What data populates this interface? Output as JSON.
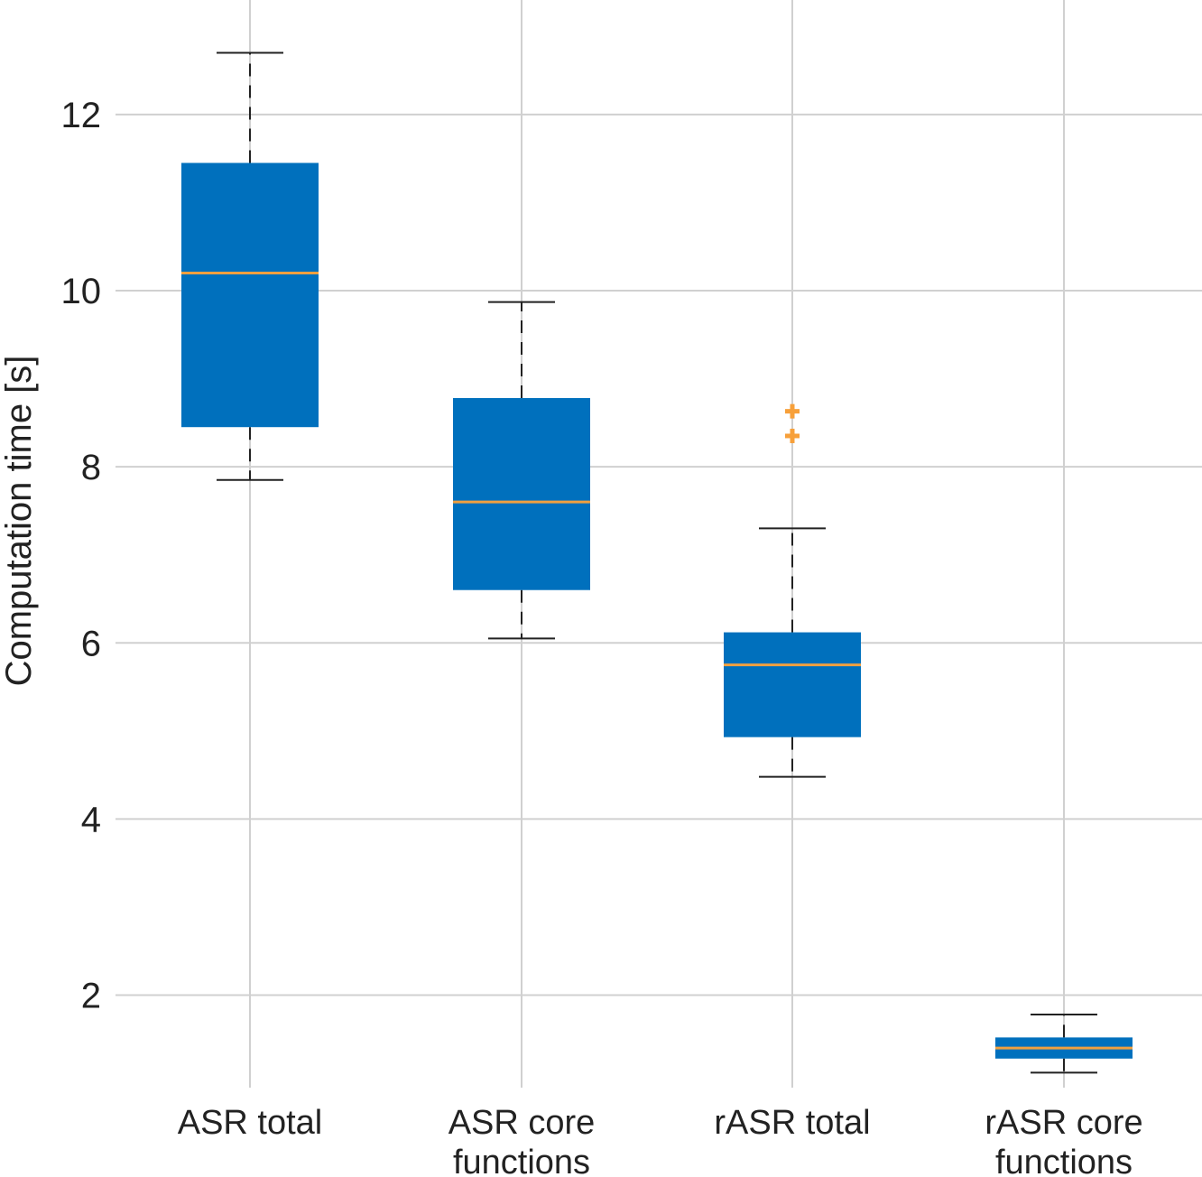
{
  "colors": {
    "box": "#0070bd",
    "median": "#f0a040",
    "outlier": "#f7a03a",
    "grid": "#d0d0d0",
    "whisker": "#222222"
  },
  "chart_data": {
    "type": "box",
    "title": "",
    "xlabel": "",
    "ylabel": "Computation time [s]",
    "ylim": [
      0.95,
      13.3
    ],
    "yticks": [
      2,
      4,
      6,
      8,
      10,
      12
    ],
    "ytick_labels": [
      "2",
      "4",
      "6",
      "8",
      "10",
      "12"
    ],
    "grid": true,
    "categories": [
      {
        "lines": [
          "ASR total"
        ],
        "whisker_low": 7.85,
        "q1": 8.45,
        "median": 10.2,
        "q3": 11.45,
        "whisker_high": 12.7,
        "outliers": []
      },
      {
        "lines": [
          "ASR core",
          "functions"
        ],
        "whisker_low": 6.05,
        "q1": 6.6,
        "median": 7.6,
        "q3": 8.78,
        "whisker_high": 9.87,
        "outliers": []
      },
      {
        "lines": [
          "rASR total"
        ],
        "whisker_low": 4.48,
        "q1": 4.93,
        "median": 5.75,
        "q3": 6.12,
        "whisker_high": 7.3,
        "outliers": [
          8.35,
          8.63
        ]
      },
      {
        "lines": [
          "rASR core",
          "functions"
        ],
        "whisker_low": 1.12,
        "q1": 1.28,
        "median": 1.4,
        "q3": 1.52,
        "whisker_high": 1.78,
        "outliers": []
      }
    ]
  }
}
